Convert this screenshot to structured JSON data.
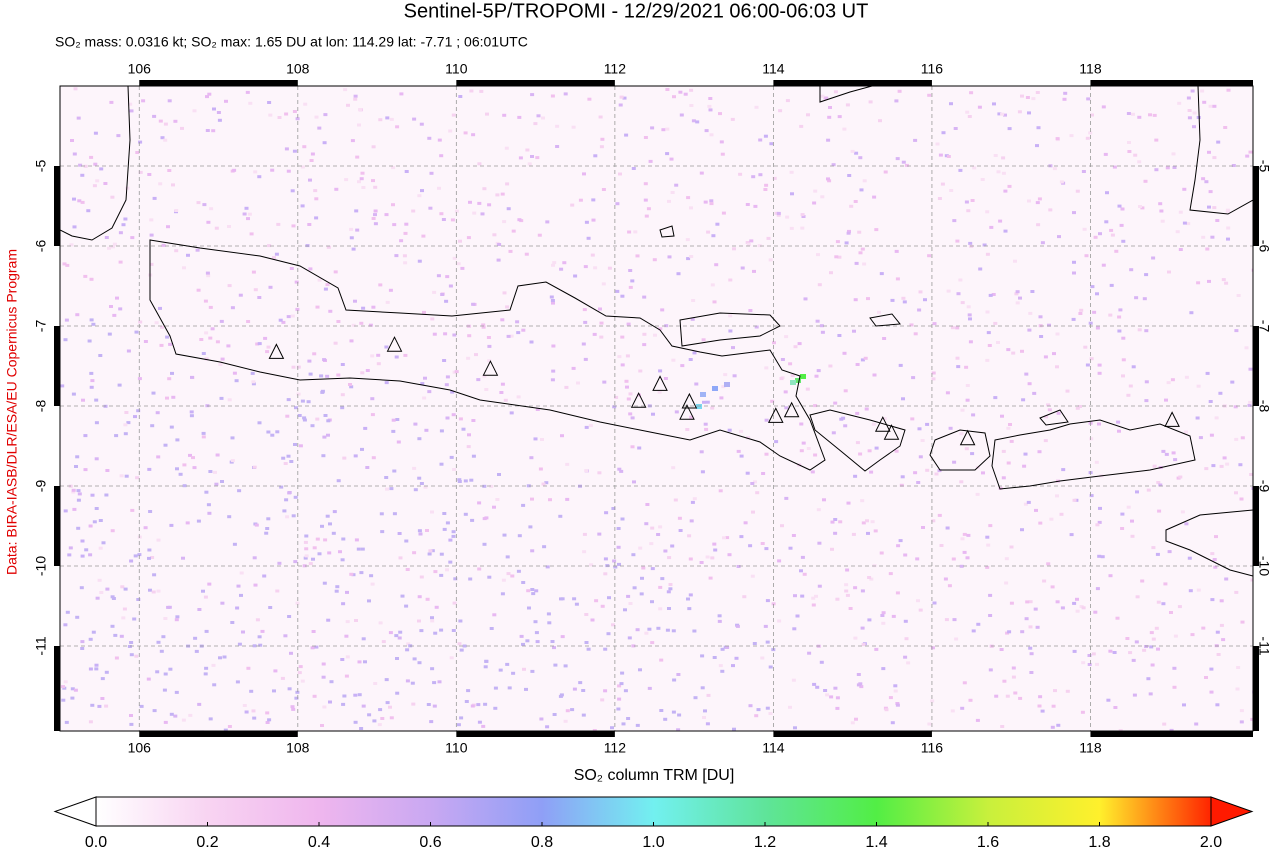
{
  "chart_data": {
    "type": "map",
    "title": "Sentinel-5P/TROPOMI - 12/29/2021 06:00-06:03 UT",
    "subtitle": "SO₂ mass: 0.0316 kt; SO₂ max: 1.65 DU at lon: 114.29 lat: -7.71 ; 06:01UTC",
    "credit": "Data: BIRA-IASB/DLR/ESA/EU Copernicus Program",
    "colorbar_label": "SO₂ column TRM [DU]",
    "xlim": [
      105,
      120
    ],
    "xticks": [
      106,
      108,
      110,
      112,
      114,
      116,
      118
    ],
    "ylim": [
      -12,
      -4
    ],
    "yticks": [
      -5,
      -6,
      -7,
      -8,
      -9,
      -10,
      -11
    ],
    "grid": true,
    "volcanoes": {
      "lon": [
        107.73,
        109.22,
        110.43,
        112.3,
        112.57,
        112.94,
        112.91,
        114.03,
        114.23,
        115.38,
        115.49,
        116.45,
        119.03
      ],
      "lat": [
        -7.33,
        -7.24,
        -7.54,
        -7.94,
        -7.73,
        -7.95,
        -8.09,
        -8.13,
        -8.06,
        -8.24,
        -8.34,
        -8.41,
        -8.18
      ]
    },
    "colorbar": {
      "lim": [
        0,
        2
      ],
      "ticks": [
        {
          "value": 0,
          "label": "0.0"
        },
        0.2,
        0.4,
        0.6,
        0.8,
        {
          "value": 1,
          "label": "1.0"
        },
        1.2,
        1.4,
        1.6,
        1.8,
        {
          "value": 2,
          "label": "2.0"
        }
      ],
      "colors": [
        "#ffffff",
        "#f8d4f2",
        "#efb6ee",
        "#c9a8f2",
        "#8f9ff6",
        "#72f0f0",
        "#5fe49a",
        "#52ee45",
        "#c8f03c",
        "#fff02c",
        "#ff2400"
      ],
      "under_color": "#ffffff",
      "over_color": "#ff1a00"
    }
  }
}
